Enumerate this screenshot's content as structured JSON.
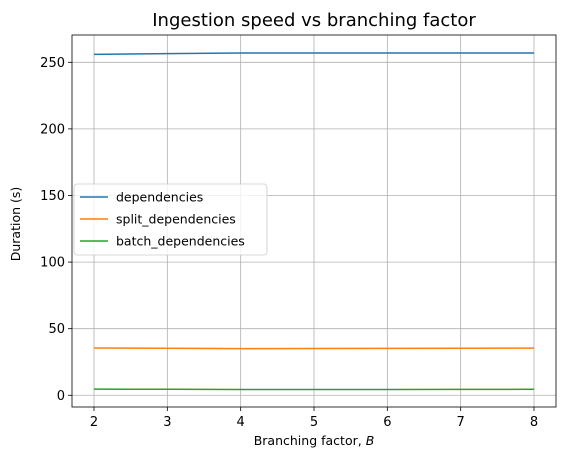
{
  "chart_data": {
    "type": "line",
    "title": "Ingestion speed vs branching factor",
    "xlabel": "Branching factor, ",
    "xlabel_var": "B",
    "ylabel": "Duration (s)",
    "x": [
      2,
      3,
      4,
      5,
      6,
      7,
      8
    ],
    "xlim": [
      1.7,
      8.3
    ],
    "ylim": [
      -8.8,
      270.5
    ],
    "xticks": [
      2,
      3,
      4,
      5,
      6,
      7,
      8
    ],
    "yticks": [
      0,
      50,
      100,
      150,
      200,
      250
    ],
    "grid": true,
    "legend_position": "center-left",
    "series": [
      {
        "name": "dependencies",
        "color": "#1f77b4",
        "values": [
          256.0,
          256.5,
          257.0,
          257.0,
          257.0,
          257.0,
          257.0
        ]
      },
      {
        "name": "split_dependencies",
        "color": "#ff7f0e",
        "values": [
          35.5,
          35.3,
          35.0,
          35.1,
          35.2,
          35.3,
          35.4
        ]
      },
      {
        "name": "batch_dependencies",
        "color": "#2ca02c",
        "values": [
          4.6,
          4.5,
          4.3,
          4.3,
          4.3,
          4.4,
          4.5
        ]
      }
    ]
  }
}
